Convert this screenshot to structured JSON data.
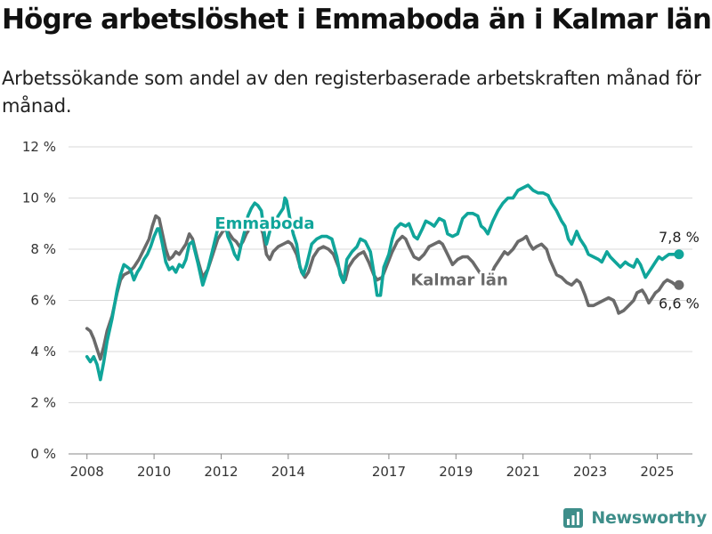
{
  "title": "Högre arbetslöshet i Emmaboda än i Kalmar län",
  "subtitle": "Arbetssökande som andel av den registerbaserade arbetskraften månad för månad.",
  "brand": "Newsworthy",
  "colors": {
    "emmaboda": "#10a59a",
    "kalmar": "#6a6a6a",
    "grid": "#d9d9d9",
    "brand": "#3e8e8a"
  },
  "chart_data": {
    "type": "line",
    "xlabel": "",
    "ylabel": "",
    "xlim": [
      2007.45,
      2026.05
    ],
    "ylim": [
      0,
      12
    ],
    "x_ticks": [
      2008,
      2010,
      2012,
      2014,
      2017,
      2019,
      2021,
      2023,
      2025
    ],
    "x_tick_labels": [
      "2008",
      "2010",
      "2012",
      "2014",
      "2017",
      "2019",
      "2021",
      "2023",
      "2025"
    ],
    "y_ticks": [
      0,
      2,
      4,
      6,
      8,
      10,
      12
    ],
    "y_tick_labels": [
      "0 %",
      "2 %",
      "4 %",
      "6 %",
      "8 %",
      "10 %",
      "12 %"
    ],
    "grid": true,
    "series": [
      {
        "name": "Emmaboda",
        "color": "#10a59a",
        "end_label": "7,8 %",
        "points": [
          [
            2008.0,
            3.8
          ],
          [
            2008.1,
            3.6
          ],
          [
            2008.2,
            3.8
          ],
          [
            2008.3,
            3.5
          ],
          [
            2008.4,
            2.9
          ],
          [
            2008.5,
            3.6
          ],
          [
            2008.6,
            4.4
          ],
          [
            2008.75,
            5.3
          ],
          [
            2008.9,
            6.4
          ],
          [
            2009.0,
            7.0
          ],
          [
            2009.1,
            7.4
          ],
          [
            2009.2,
            7.3
          ],
          [
            2009.3,
            7.2
          ],
          [
            2009.4,
            6.8
          ],
          [
            2009.5,
            7.1
          ],
          [
            2009.6,
            7.3
          ],
          [
            2009.7,
            7.6
          ],
          [
            2009.8,
            7.8
          ],
          [
            2009.9,
            8.1
          ],
          [
            2010.0,
            8.5
          ],
          [
            2010.1,
            8.8
          ],
          [
            2010.15,
            8.8
          ],
          [
            2010.25,
            8.2
          ],
          [
            2010.35,
            7.5
          ],
          [
            2010.45,
            7.2
          ],
          [
            2010.55,
            7.3
          ],
          [
            2010.65,
            7.1
          ],
          [
            2010.75,
            7.4
          ],
          [
            2010.85,
            7.3
          ],
          [
            2010.95,
            7.6
          ],
          [
            2011.05,
            8.2
          ],
          [
            2011.15,
            8.3
          ],
          [
            2011.3,
            7.5
          ],
          [
            2011.45,
            6.6
          ],
          [
            2011.6,
            7.2
          ],
          [
            2011.75,
            8.0
          ],
          [
            2011.9,
            8.8
          ],
          [
            2012.0,
            9.2
          ],
          [
            2012.1,
            9.2
          ],
          [
            2012.2,
            8.5
          ],
          [
            2012.3,
            8.2
          ],
          [
            2012.4,
            7.8
          ],
          [
            2012.5,
            7.6
          ],
          [
            2012.6,
            8.2
          ],
          [
            2012.7,
            8.7
          ],
          [
            2012.8,
            9.3
          ],
          [
            2012.9,
            9.6
          ],
          [
            2013.0,
            9.8
          ],
          [
            2013.1,
            9.7
          ],
          [
            2013.2,
            9.5
          ],
          [
            2013.3,
            8.5
          ],
          [
            2013.35,
            8.2
          ],
          [
            2013.45,
            8.7
          ],
          [
            2013.55,
            9.2
          ],
          [
            2013.65,
            9.2
          ],
          [
            2013.75,
            9.4
          ],
          [
            2013.85,
            9.6
          ],
          [
            2013.9,
            10.0
          ],
          [
            2013.95,
            9.9
          ],
          [
            2014.05,
            9.2
          ],
          [
            2014.15,
            8.6
          ],
          [
            2014.25,
            8.2
          ],
          [
            2014.35,
            7.3
          ],
          [
            2014.45,
            7.0
          ],
          [
            2014.55,
            7.4
          ],
          [
            2014.7,
            8.2
          ],
          [
            2014.85,
            8.4
          ],
          [
            2015.0,
            8.5
          ],
          [
            2015.15,
            8.5
          ],
          [
            2015.3,
            8.4
          ],
          [
            2015.45,
            7.7
          ],
          [
            2015.55,
            7.0
          ],
          [
            2015.65,
            6.7
          ],
          [
            2015.75,
            7.6
          ],
          [
            2015.9,
            7.9
          ],
          [
            2016.05,
            8.1
          ],
          [
            2016.15,
            8.4
          ],
          [
            2016.3,
            8.3
          ],
          [
            2016.45,
            7.9
          ],
          [
            2016.55,
            7.1
          ],
          [
            2016.65,
            6.2
          ],
          [
            2016.75,
            6.2
          ],
          [
            2016.85,
            7.3
          ],
          [
            2017.0,
            7.8
          ],
          [
            2017.1,
            8.4
          ],
          [
            2017.2,
            8.8
          ],
          [
            2017.35,
            9.0
          ],
          [
            2017.5,
            8.9
          ],
          [
            2017.6,
            9.0
          ],
          [
            2017.75,
            8.5
          ],
          [
            2017.85,
            8.4
          ],
          [
            2018.0,
            8.8
          ],
          [
            2018.1,
            9.1
          ],
          [
            2018.25,
            9.0
          ],
          [
            2018.35,
            8.9
          ],
          [
            2018.5,
            9.2
          ],
          [
            2018.65,
            9.1
          ],
          [
            2018.75,
            8.6
          ],
          [
            2018.9,
            8.5
          ],
          [
            2019.05,
            8.6
          ],
          [
            2019.2,
            9.2
          ],
          [
            2019.35,
            9.4
          ],
          [
            2019.5,
            9.4
          ],
          [
            2019.65,
            9.3
          ],
          [
            2019.75,
            8.9
          ],
          [
            2019.85,
            8.8
          ],
          [
            2019.95,
            8.6
          ],
          [
            2020.1,
            9.1
          ],
          [
            2020.25,
            9.5
          ],
          [
            2020.4,
            9.8
          ],
          [
            2020.55,
            10.0
          ],
          [
            2020.7,
            10.0
          ],
          [
            2020.85,
            10.3
          ],
          [
            2021.0,
            10.4
          ],
          [
            2021.15,
            10.5
          ],
          [
            2021.3,
            10.3
          ],
          [
            2021.45,
            10.2
          ],
          [
            2021.6,
            10.2
          ],
          [
            2021.75,
            10.1
          ],
          [
            2021.85,
            9.8
          ],
          [
            2022.0,
            9.5
          ],
          [
            2022.15,
            9.1
          ],
          [
            2022.25,
            8.9
          ],
          [
            2022.35,
            8.4
          ],
          [
            2022.45,
            8.2
          ],
          [
            2022.6,
            8.7
          ],
          [
            2022.7,
            8.4
          ],
          [
            2022.85,
            8.1
          ],
          [
            2022.95,
            7.8
          ],
          [
            2023.1,
            7.7
          ],
          [
            2023.25,
            7.6
          ],
          [
            2023.35,
            7.5
          ],
          [
            2023.5,
            7.9
          ],
          [
            2023.6,
            7.7
          ],
          [
            2023.75,
            7.5
          ],
          [
            2023.9,
            7.3
          ],
          [
            2024.05,
            7.5
          ],
          [
            2024.15,
            7.4
          ],
          [
            2024.3,
            7.3
          ],
          [
            2024.4,
            7.6
          ],
          [
            2024.5,
            7.4
          ],
          [
            2024.65,
            6.9
          ],
          [
            2024.75,
            7.1
          ],
          [
            2024.85,
            7.3
          ],
          [
            2024.95,
            7.5
          ],
          [
            2025.05,
            7.7
          ],
          [
            2025.15,
            7.6
          ],
          [
            2025.25,
            7.7
          ],
          [
            2025.35,
            7.8
          ],
          [
            2025.45,
            7.8
          ],
          [
            2025.55,
            7.8
          ],
          [
            2025.65,
            7.8
          ]
        ]
      },
      {
        "name": "Kalmar län",
        "color": "#6a6a6a",
        "end_label": "6,6 %",
        "points": [
          [
            2008.0,
            4.9
          ],
          [
            2008.1,
            4.8
          ],
          [
            2008.2,
            4.5
          ],
          [
            2008.3,
            4.1
          ],
          [
            2008.4,
            3.7
          ],
          [
            2008.5,
            4.2
          ],
          [
            2008.6,
            4.8
          ],
          [
            2008.75,
            5.4
          ],
          [
            2008.9,
            6.3
          ],
          [
            2009.0,
            6.8
          ],
          [
            2009.1,
            7.0
          ],
          [
            2009.25,
            7.1
          ],
          [
            2009.4,
            7.3
          ],
          [
            2009.55,
            7.6
          ],
          [
            2009.7,
            8.0
          ],
          [
            2009.85,
            8.4
          ],
          [
            2009.95,
            8.9
          ],
          [
            2010.05,
            9.3
          ],
          [
            2010.15,
            9.2
          ],
          [
            2010.25,
            8.6
          ],
          [
            2010.35,
            8.0
          ],
          [
            2010.45,
            7.6
          ],
          [
            2010.55,
            7.7
          ],
          [
            2010.65,
            7.9
          ],
          [
            2010.75,
            7.8
          ],
          [
            2010.85,
            8.0
          ],
          [
            2010.95,
            8.2
          ],
          [
            2011.05,
            8.6
          ],
          [
            2011.15,
            8.4
          ],
          [
            2011.3,
            7.6
          ],
          [
            2011.45,
            6.9
          ],
          [
            2011.6,
            7.2
          ],
          [
            2011.75,
            7.8
          ],
          [
            2011.9,
            8.4
          ],
          [
            2012.05,
            8.7
          ],
          [
            2012.15,
            8.8
          ],
          [
            2012.25,
            8.6
          ],
          [
            2012.35,
            8.4
          ],
          [
            2012.45,
            8.3
          ],
          [
            2012.55,
            8.1
          ],
          [
            2012.65,
            8.3
          ],
          [
            2012.75,
            8.6
          ],
          [
            2012.85,
            8.8
          ],
          [
            2012.95,
            9.0
          ],
          [
            2013.05,
            9.1
          ],
          [
            2013.15,
            9.0
          ],
          [
            2013.25,
            8.6
          ],
          [
            2013.35,
            7.8
          ],
          [
            2013.45,
            7.6
          ],
          [
            2013.55,
            7.9
          ],
          [
            2013.7,
            8.1
          ],
          [
            2013.85,
            8.2
          ],
          [
            2014.0,
            8.3
          ],
          [
            2014.1,
            8.2
          ],
          [
            2014.25,
            7.8
          ],
          [
            2014.4,
            7.1
          ],
          [
            2014.5,
            6.9
          ],
          [
            2014.6,
            7.1
          ],
          [
            2014.75,
            7.7
          ],
          [
            2014.9,
            8.0
          ],
          [
            2015.05,
            8.1
          ],
          [
            2015.2,
            8.0
          ],
          [
            2015.35,
            7.8
          ],
          [
            2015.5,
            7.3
          ],
          [
            2015.6,
            6.9
          ],
          [
            2015.7,
            6.8
          ],
          [
            2015.8,
            7.3
          ],
          [
            2015.95,
            7.6
          ],
          [
            2016.1,
            7.8
          ],
          [
            2016.25,
            7.9
          ],
          [
            2016.4,
            7.5
          ],
          [
            2016.55,
            7.0
          ],
          [
            2016.65,
            6.8
          ],
          [
            2016.8,
            6.9
          ],
          [
            2016.95,
            7.4
          ],
          [
            2017.1,
            7.9
          ],
          [
            2017.25,
            8.3
          ],
          [
            2017.4,
            8.5
          ],
          [
            2017.5,
            8.4
          ],
          [
            2017.6,
            8.1
          ],
          [
            2017.75,
            7.7
          ],
          [
            2017.9,
            7.6
          ],
          [
            2018.05,
            7.8
          ],
          [
            2018.2,
            8.1
          ],
          [
            2018.35,
            8.2
          ],
          [
            2018.5,
            8.3
          ],
          [
            2018.6,
            8.2
          ],
          [
            2018.75,
            7.8
          ],
          [
            2018.9,
            7.4
          ],
          [
            2019.05,
            7.6
          ],
          [
            2019.2,
            7.7
          ],
          [
            2019.35,
            7.7
          ],
          [
            2019.5,
            7.5
          ],
          [
            2019.6,
            7.3
          ],
          [
            2019.7,
            7.1
          ],
          [
            2019.78,
            7.0
          ],
          [
            2019.86,
            7.0
          ],
          [
            2019.94,
            6.9
          ],
          [
            2020.05,
            7.0
          ],
          [
            2020.15,
            7.3
          ],
          [
            2020.3,
            7.6
          ],
          [
            2020.45,
            7.9
          ],
          [
            2020.55,
            7.8
          ],
          [
            2020.7,
            8.0
          ],
          [
            2020.85,
            8.3
          ],
          [
            2021.0,
            8.4
          ],
          [
            2021.1,
            8.5
          ],
          [
            2021.2,
            8.2
          ],
          [
            2021.3,
            8.0
          ],
          [
            2021.4,
            8.1
          ],
          [
            2021.55,
            8.2
          ],
          [
            2021.7,
            8.0
          ],
          [
            2021.8,
            7.6
          ],
          [
            2021.9,
            7.3
          ],
          [
            2022.0,
            7.0
          ],
          [
            2022.15,
            6.9
          ],
          [
            2022.3,
            6.7
          ],
          [
            2022.45,
            6.6
          ],
          [
            2022.6,
            6.8
          ],
          [
            2022.7,
            6.7
          ],
          [
            2022.85,
            6.2
          ],
          [
            2022.95,
            5.8
          ],
          [
            2023.1,
            5.8
          ],
          [
            2023.25,
            5.9
          ],
          [
            2023.4,
            6.0
          ],
          [
            2023.55,
            6.1
          ],
          [
            2023.7,
            6.0
          ],
          [
            2023.8,
            5.7
          ],
          [
            2023.85,
            5.5
          ],
          [
            2024.0,
            5.6
          ],
          [
            2024.15,
            5.8
          ],
          [
            2024.3,
            6.0
          ],
          [
            2024.4,
            6.3
          ],
          [
            2024.55,
            6.4
          ],
          [
            2024.65,
            6.2
          ],
          [
            2024.75,
            5.9
          ],
          [
            2024.85,
            6.1
          ],
          [
            2024.95,
            6.3
          ],
          [
            2025.05,
            6.4
          ],
          [
            2025.2,
            6.7
          ],
          [
            2025.3,
            6.8
          ],
          [
            2025.45,
            6.7
          ],
          [
            2025.55,
            6.6
          ],
          [
            2025.65,
            6.6
          ]
        ]
      }
    ],
    "labels": [
      {
        "series": "Emmaboda",
        "text": "Emmaboda",
        "x": 2013.3,
        "y": 8.8
      },
      {
        "series": "Kalmar län",
        "text": "Kalmar län",
        "x": 2019.1,
        "y": 6.6
      }
    ]
  }
}
